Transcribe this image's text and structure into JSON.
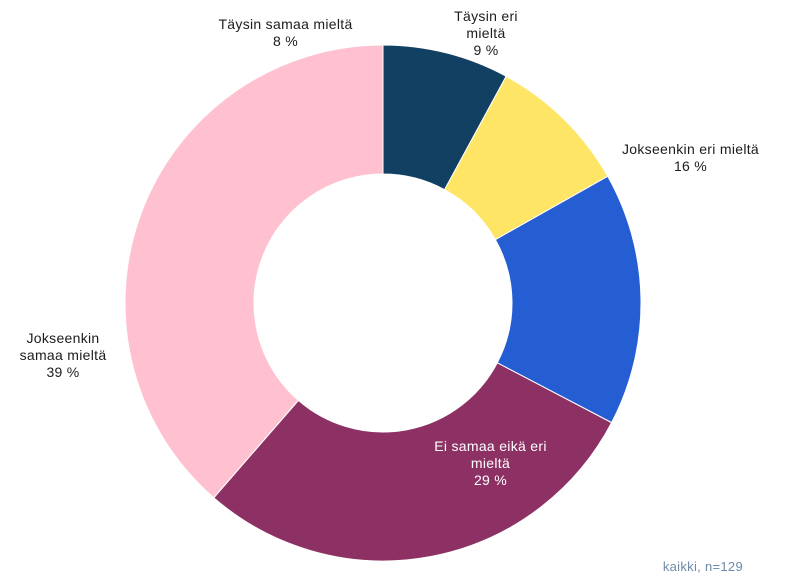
{
  "chart_data": {
    "type": "pie",
    "donut": true,
    "categories": [
      "Täysin samaa mieltä",
      "Täysin eri mieltä",
      "Jokseenkin eri mieltä",
      "Ei samaa eikä eri mieltä",
      "Jokseenkin samaa mieltä"
    ],
    "values": [
      8,
      9,
      16,
      29,
      39
    ],
    "value_labels": [
      "8 %",
      "9 %",
      "16 %",
      "29 %",
      "39 %"
    ],
    "colors": [
      "#124062",
      "#ffe566",
      "#245ed2",
      "#8d3164",
      "#ffc1d0"
    ],
    "label_lines": [
      [
        "Täysin samaa mieltä"
      ],
      [
        "Täysin eri",
        "mieltä"
      ],
      [
        "Jokseenkin eri mieltä"
      ],
      [
        "Ei samaa eikä eri",
        "mieltä"
      ],
      [
        "Jokseenkin",
        "samaa mieltä"
      ]
    ]
  },
  "footnote": "kaikki, n=129"
}
